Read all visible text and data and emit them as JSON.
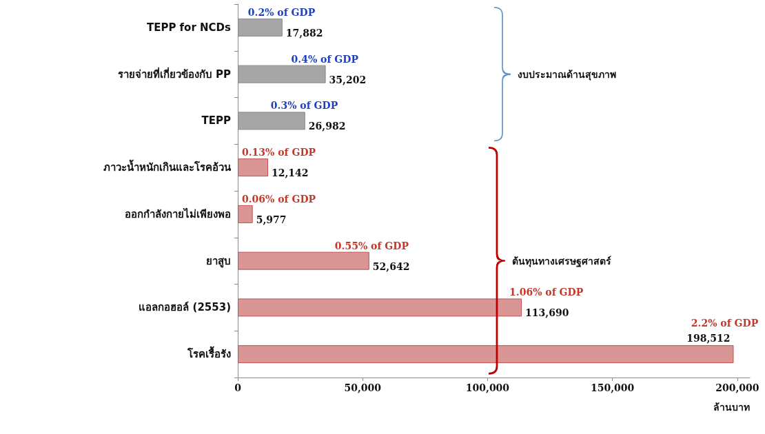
{
  "chart_data": {
    "type": "bar",
    "orientation": "horizontal",
    "categories": [
      "TEPP for NCDs",
      "รายจ่ายที่เกี่ยวข้องกับ PP",
      "TEPP",
      "ภาวะน้ำหนักเกินและโรคอ้วน",
      "ออกกำลังกายไม่เพียงพอ",
      "ยาสูบ",
      "แอลกอฮอล์ (2553)",
      "โรคเรื้อรัง"
    ],
    "values": [
      17882,
      35202,
      26982,
      12142,
      5977,
      52642,
      113690,
      198512
    ],
    "colors": [
      "#a6a6a6",
      "#a6a6a6",
      "#a6a6a6",
      "#d99694",
      "#d99694",
      "#d99694",
      "#d99694",
      "#d99694"
    ],
    "value_labels": [
      "17,882",
      "35,202",
      "26,982",
      "12,142",
      "5,977",
      "52,642",
      "113,690",
      "198,512"
    ],
    "xlim": [
      0,
      205000
    ],
    "xticks": [
      {
        "value": 0,
        "label": "0"
      },
      {
        "value": 50000,
        "label": "50,000"
      },
      {
        "value": 100000,
        "label": "100,000"
      },
      {
        "value": 150000,
        "label": "150,000"
      },
      {
        "value": 200000,
        "label": "200,000"
      }
    ],
    "xlabel": "ล้านบาท",
    "annotations": [
      {
        "text": "0.2% of GDP",
        "x": 17882,
        "y": "TEPP for NCDs"
      },
      {
        "text": "0.4% of GDP",
        "x": 35202,
        "y": "รายจ่ายที่เกี่ยวข้องกับ PP"
      },
      {
        "text": "0.3% of GDP",
        "x": 26982,
        "y": "TEPP"
      },
      {
        "text": "0.13% of GDP",
        "x": 12142,
        "y": "ภาวะน้ำหนักเกินและโรคอ้วน"
      },
      {
        "text": "0.06% of GDP",
        "x": 5977,
        "y": "ออกกำลังกายไม่เพียงพอ"
      },
      {
        "text": "0.55% of GDP",
        "x": 52642,
        "y": "ยาสูบ"
      },
      {
        "text": "1.06% of GDP",
        "x": 113690,
        "y": "แอลกอฮอล์ (2553)"
      },
      {
        "text": "2.2% of GDP",
        "x": 198512,
        "y": "โรคเรื้อรัง"
      },
      "งบประมาณด้านสุขภาพ",
      "ต้นทุนทางเศรษฐศาสตร์"
    ],
    "grid": false
  }
}
